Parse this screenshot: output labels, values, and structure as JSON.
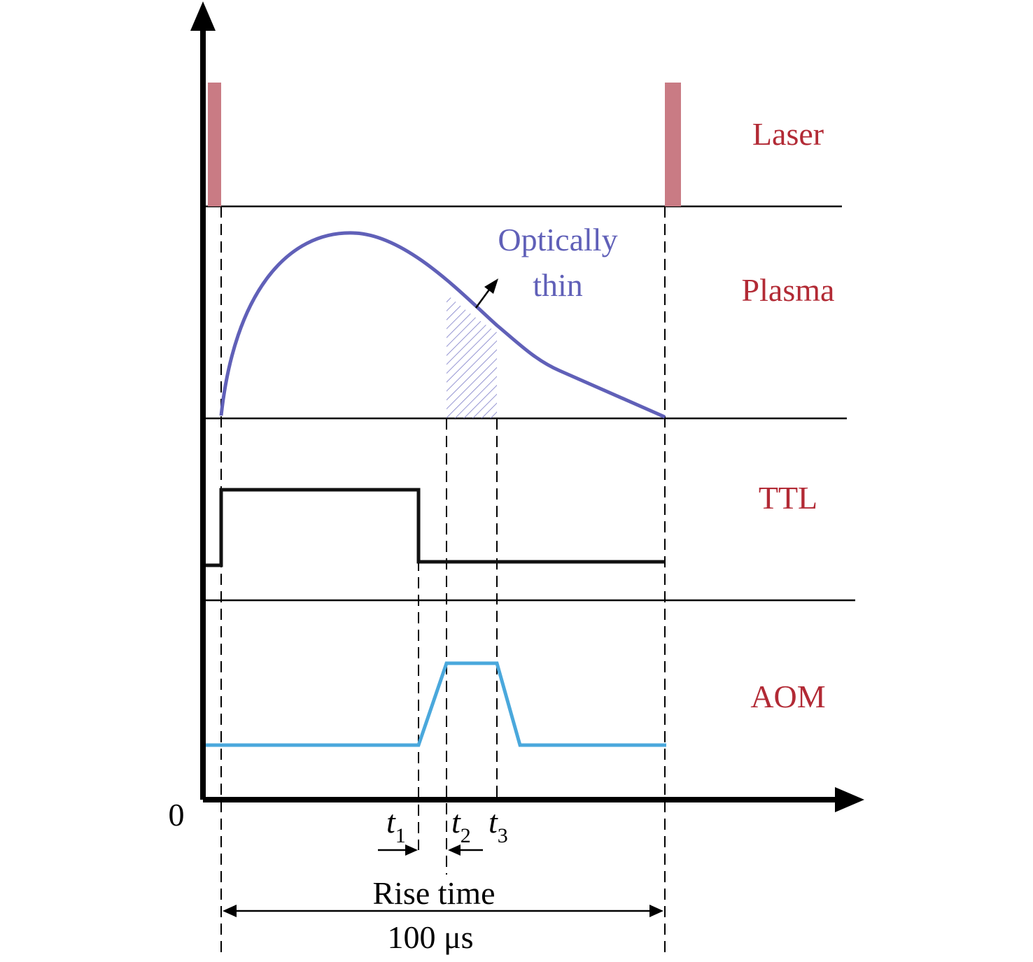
{
  "colors": {
    "axis": "#000000",
    "label": "#b22a35",
    "laser": "#c97b84",
    "plasma": "#6060b8",
    "ttl": "#111111",
    "aom": "#4aa8dc",
    "hatch": "#7b7bc8"
  },
  "lanes": {
    "laser": "Laser",
    "plasma": "Plasma",
    "ttl": "TTL",
    "aom": "AOM"
  },
  "annotations": {
    "optically": "Optically",
    "thin": "thin",
    "rise_time": "Rise time",
    "period": "100 μs"
  },
  "axis": {
    "origin": "0"
  },
  "time_marks": {
    "t1": {
      "base": "t",
      "sub": "1"
    },
    "t2": {
      "base": "t",
      "sub": "2"
    },
    "t3": {
      "base": "t",
      "sub": "3"
    }
  }
}
